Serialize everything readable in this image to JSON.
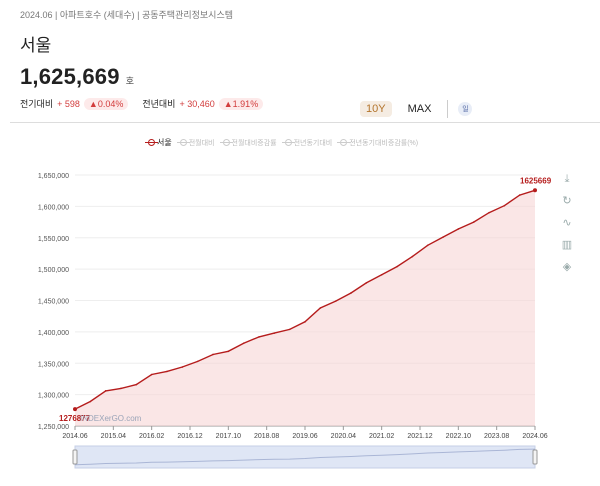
{
  "header": {
    "meta": "2024.06 | 아파트호수 (세대수) | 공동주택관리정보시스템",
    "city": "서울",
    "value": "1,625,669",
    "unit": "호",
    "prev_label": "전기대비",
    "prev_value": "+ 598",
    "prev_pct": "▲0.04%",
    "yoy_label": "전년대비",
    "yoy_value": "+ 30,460",
    "yoy_pct": "▲1.91%"
  },
  "range": {
    "tenY": "10Y",
    "max": "MAX",
    "cal": "일"
  },
  "legend": [
    "서울",
    "전월대비",
    "전월대비증감률",
    "전년동기대비",
    "전년동기대비증감률(%)"
  ],
  "watermark": "INDEXerGO.com",
  "colors": {
    "line": "#b51c1c",
    "fill": "#f6d6d6",
    "pill_bg": "#fdeaea",
    "accent": "#d23c3c"
  },
  "tools": [
    "download-icon",
    "refresh-icon",
    "line-chart-icon",
    "bar-chart-icon",
    "layers-icon"
  ],
  "chart_data": {
    "type": "area",
    "title": "",
    "xlabel": "",
    "ylabel": "",
    "ylim": [
      1250000,
      1650000
    ],
    "yticks": [
      1250000,
      1300000,
      1350000,
      1400000,
      1450000,
      1500000,
      1550000,
      1600000,
      1650000
    ],
    "ytick_labels": [
      "1,250,000",
      "1,300,000",
      "1,350,000",
      "1,400,000",
      "1,450,000",
      "1,500,000",
      "1,550,000",
      "1,600,000",
      "1,650,000"
    ],
    "xticks": [
      "2014.06",
      "2015.04",
      "2016.02",
      "2016.12",
      "2017.10",
      "2018.08",
      "2019.06",
      "2020.04",
      "2021.02",
      "2021.12",
      "2022.10",
      "2023.08",
      "2024.06"
    ],
    "start_label": "1276877",
    "end_label": "1625669",
    "series": [
      {
        "name": "서울",
        "values": [
          1276877,
          1289000,
          1306000,
          1310000,
          1316000,
          1332000,
          1337000,
          1344000,
          1353000,
          1364000,
          1369000,
          1382000,
          1392000,
          1398000,
          1404000,
          1416000,
          1438000,
          1449000,
          1462000,
          1478000,
          1491000,
          1504000,
          1520000,
          1538000,
          1551000,
          1564000,
          1575000,
          1590000,
          1601000,
          1618000,
          1625669
        ]
      }
    ]
  }
}
